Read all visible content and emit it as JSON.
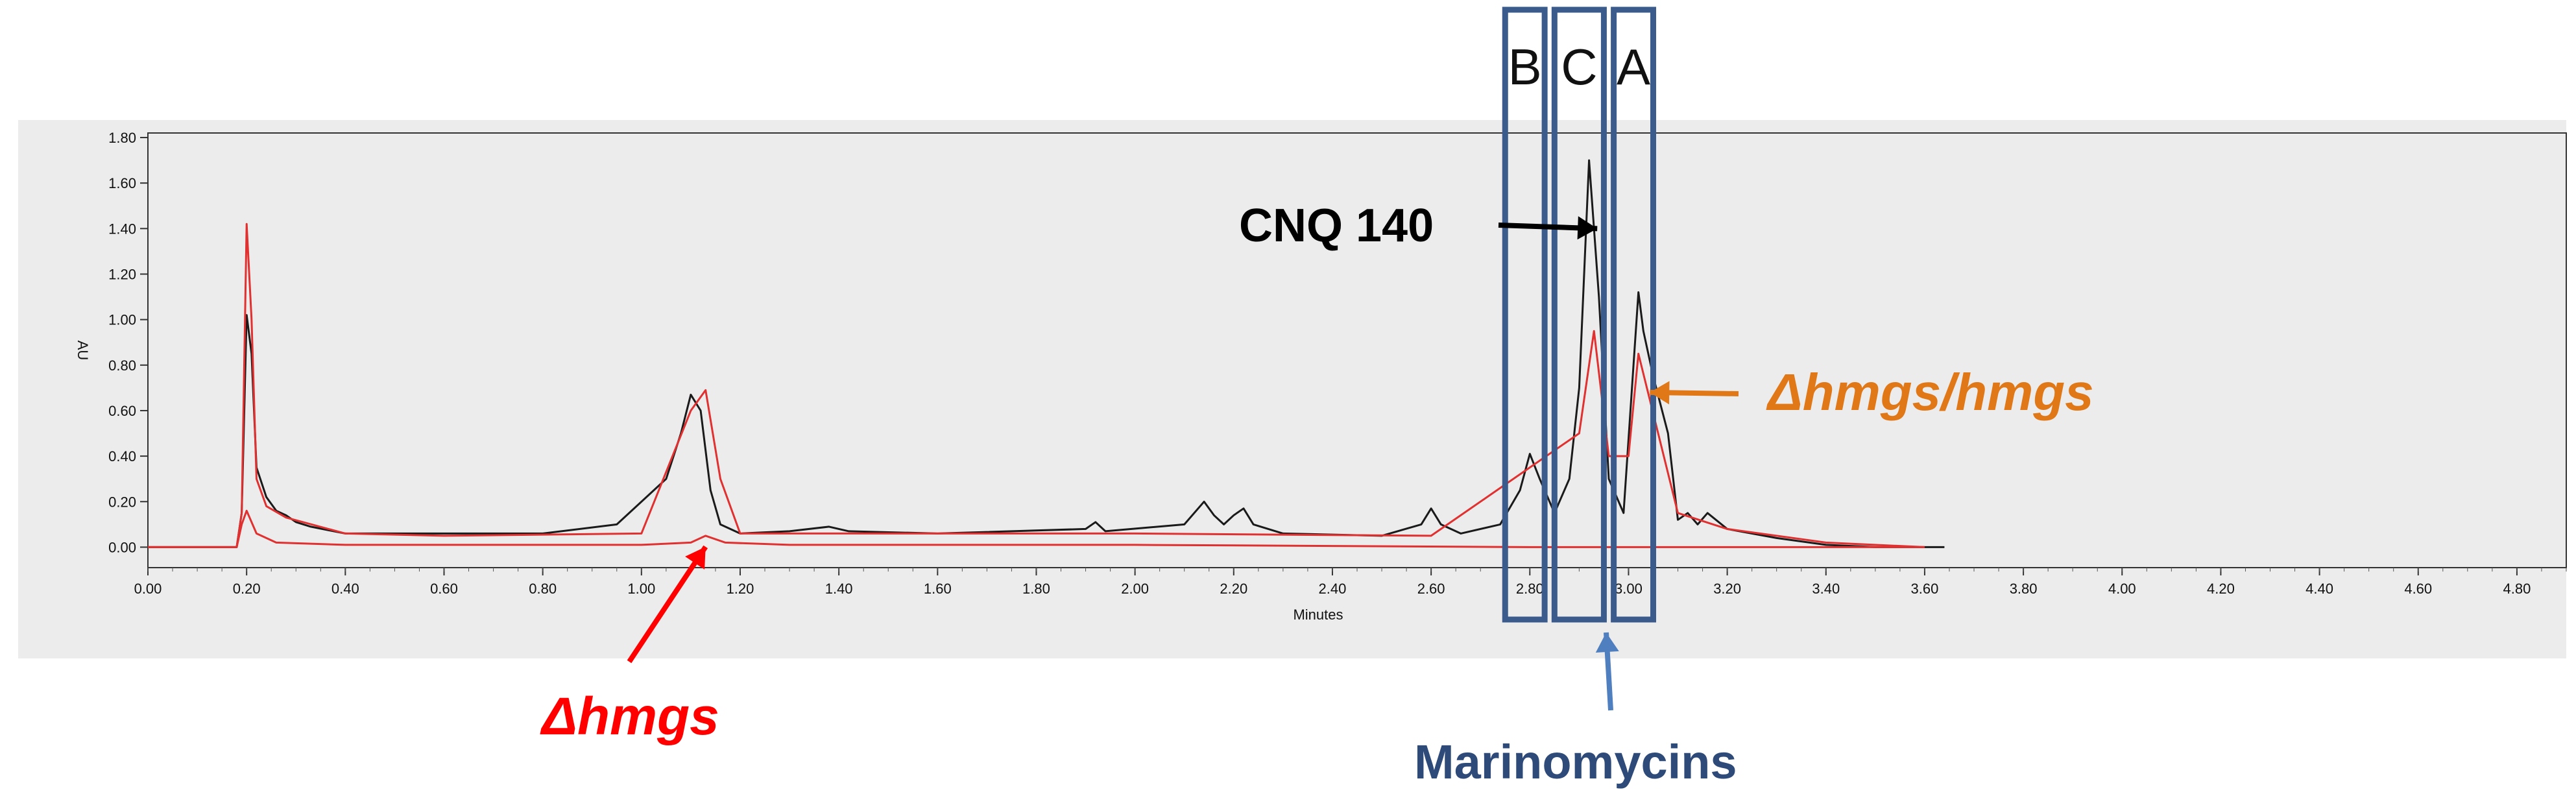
{
  "chart_data": {
    "type": "line",
    "xlabel": "Minutes",
    "ylabel": "AU",
    "xlim": [
      0.0,
      4.9
    ],
    "ylim": [
      -0.09,
      1.82
    ],
    "xticks": [
      "0.00",
      "0.20",
      "0.40",
      "0.60",
      "0.80",
      "1.00",
      "1.20",
      "1.40",
      "1.60",
      "1.80",
      "2.00",
      "2.20",
      "2.40",
      "2.60",
      "2.80",
      "3.00",
      "3.20",
      "3.40",
      "3.60",
      "3.80",
      "4.00",
      "4.20",
      "4.40",
      "4.60",
      "4.80"
    ],
    "yticks": [
      "0.00",
      "0.20",
      "0.40",
      "0.60",
      "0.80",
      "1.00",
      "1.20",
      "1.40",
      "1.60",
      "1.80"
    ],
    "grid": false,
    "series": [
      {
        "color": "#1a1a1a",
        "x": [
          0.0,
          0.18,
          0.19,
          0.2,
          0.21,
          0.22,
          0.24,
          0.26,
          0.28,
          0.3,
          0.33,
          0.4,
          0.6,
          0.8,
          0.95,
          1.05,
          1.08,
          1.1,
          1.12,
          1.14,
          1.16,
          1.2,
          1.3,
          1.38,
          1.42,
          1.6,
          1.9,
          1.92,
          1.94,
          2.1,
          2.14,
          2.16,
          2.18,
          2.2,
          2.22,
          2.24,
          2.3,
          2.5,
          2.58,
          2.6,
          2.62,
          2.66,
          2.74,
          2.78,
          2.8,
          2.82,
          2.85,
          2.88,
          2.9,
          2.92,
          2.94,
          2.96,
          2.99,
          3.01,
          3.02,
          3.03,
          3.05,
          3.08,
          3.1,
          3.12,
          3.14,
          3.16,
          3.2,
          3.3,
          3.4,
          3.5,
          3.6,
          3.64
        ],
        "y": [
          0.0,
          0.0,
          0.15,
          1.02,
          0.85,
          0.35,
          0.22,
          0.16,
          0.14,
          0.11,
          0.09,
          0.06,
          0.06,
          0.06,
          0.1,
          0.3,
          0.5,
          0.67,
          0.6,
          0.25,
          0.1,
          0.06,
          0.07,
          0.09,
          0.07,
          0.06,
          0.08,
          0.11,
          0.07,
          0.1,
          0.2,
          0.14,
          0.1,
          0.14,
          0.17,
          0.1,
          0.06,
          0.05,
          0.1,
          0.17,
          0.1,
          0.06,
          0.1,
          0.25,
          0.41,
          0.3,
          0.15,
          0.3,
          0.7,
          1.7,
          1.1,
          0.3,
          0.15,
          0.8,
          1.12,
          0.95,
          0.75,
          0.5,
          0.12,
          0.15,
          0.1,
          0.15,
          0.08,
          0.04,
          0.01,
          0.0,
          0.0,
          0.0
        ]
      },
      {
        "color": "#e03030",
        "x": [
          0.0,
          0.18,
          0.19,
          0.2,
          0.21,
          0.22,
          0.24,
          0.28,
          0.4,
          0.6,
          1.0,
          1.1,
          1.13,
          1.16,
          1.2,
          1.6,
          2.0,
          2.6,
          2.9,
          2.93,
          2.96,
          3.0,
          3.02,
          3.1,
          3.2,
          3.4,
          3.6
        ],
        "y": [
          0.0,
          0.0,
          0.15,
          1.42,
          1.0,
          0.3,
          0.18,
          0.13,
          0.06,
          0.05,
          0.06,
          0.6,
          0.69,
          0.3,
          0.06,
          0.06,
          0.06,
          0.05,
          0.5,
          0.95,
          0.4,
          0.4,
          0.85,
          0.15,
          0.08,
          0.02,
          0.0
        ]
      },
      {
        "color": "#e03030",
        "x": [
          0.0,
          0.18,
          0.19,
          0.2,
          0.22,
          0.26,
          0.4,
          1.0,
          1.1,
          1.13,
          1.17,
          1.3,
          2.0,
          2.8,
          3.0,
          3.6
        ],
        "y": [
          0.0,
          0.0,
          0.1,
          0.16,
          0.06,
          0.02,
          0.01,
          0.01,
          0.02,
          0.05,
          0.02,
          0.01,
          0.01,
          0.0,
          0.0,
          0.0
        ]
      }
    ],
    "boxes": [
      {
        "label": "B",
        "x_range": [
          2.75,
          2.83
        ]
      },
      {
        "label": "C",
        "x_range": [
          2.85,
          2.95
        ]
      },
      {
        "label": "A",
        "x_range": [
          2.97,
          3.05
        ]
      }
    ],
    "annotations": [
      {
        "text": "CNQ 140",
        "points_to": [
          2.93,
          1.4
        ],
        "color": "#000000"
      },
      {
        "text": "Δhmgs/hmgs",
        "points_to": [
          3.03,
          0.68
        ],
        "color": "#e07818"
      },
      {
        "text": "Δhmgs",
        "points_to": [
          1.13,
          0.03
        ],
        "color": "#ff0000"
      },
      {
        "text": "Marinomycins",
        "points_to": [
          2.92,
          -0.3
        ],
        "color": "#2e4a78"
      }
    ]
  }
}
